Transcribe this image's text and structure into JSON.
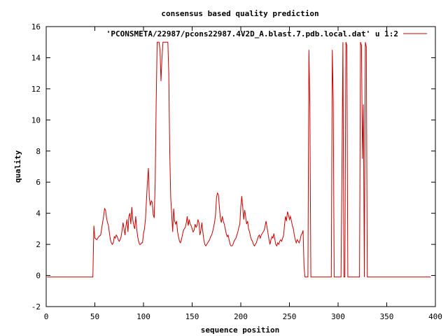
{
  "chart_data": {
    "type": "line",
    "title": "consensus based quality prediction",
    "xlabel": "sequence position",
    "ylabel": "quality",
    "xlim": [
      0,
      400
    ],
    "ylim": [
      -2,
      16
    ],
    "x_ticks": [
      0,
      50,
      100,
      150,
      200,
      250,
      300,
      350,
      400
    ],
    "y_ticks": [
      -2,
      0,
      2,
      4,
      6,
      8,
      10,
      12,
      14,
      16
    ],
    "grid": false,
    "legend_position": "top-right",
    "colors": {
      "series": "#cc0000",
      "axes": "#000000",
      "background": "#ffffff"
    },
    "series": [
      {
        "name": "'PCONSMETA/22987/pcons22987.4V2D_A.blast.7.pdb.local.dat' u 1:2",
        "color": "#cc0000",
        "points": [
          [
            1,
            -0.1
          ],
          [
            48,
            -0.1
          ],
          [
            49,
            3.2
          ],
          [
            50,
            2.4
          ],
          [
            52,
            2.3
          ],
          [
            54,
            2.5
          ],
          [
            56,
            2.6
          ],
          [
            58,
            3.4
          ],
          [
            59,
            3.8
          ],
          [
            60,
            4.3
          ],
          [
            61,
            4.2
          ],
          [
            62,
            3.7
          ],
          [
            63,
            3.4
          ],
          [
            64,
            3.2
          ],
          [
            65,
            2.7
          ],
          [
            66,
            2.3
          ],
          [
            67,
            2.1
          ],
          [
            68,
            2.0
          ],
          [
            69,
            2.1
          ],
          [
            70,
            2.5
          ],
          [
            71,
            2.4
          ],
          [
            72,
            2.6
          ],
          [
            73,
            2.5
          ],
          [
            74,
            2.3
          ],
          [
            75,
            2.2
          ],
          [
            76,
            2.3
          ],
          [
            77,
            2.5
          ],
          [
            78,
            2.9
          ],
          [
            79,
            3.4
          ],
          [
            80,
            3.0
          ],
          [
            81,
            2.6
          ],
          [
            82,
            3.2
          ],
          [
            83,
            3.6
          ],
          [
            84,
            2.8
          ],
          [
            85,
            3.8
          ],
          [
            86,
            4.0
          ],
          [
            87,
            3.3
          ],
          [
            88,
            4.4
          ],
          [
            89,
            3.6
          ],
          [
            90,
            3.2
          ],
          [
            91,
            3.0
          ],
          [
            92,
            3.8
          ],
          [
            93,
            3.0
          ],
          [
            94,
            2.5
          ],
          [
            95,
            2.2
          ],
          [
            96,
            2.0
          ],
          [
            97,
            2.0
          ],
          [
            98,
            2.1
          ],
          [
            99,
            2.1
          ],
          [
            100,
            2.7
          ],
          [
            101,
            3.0
          ],
          [
            102,
            3.6
          ],
          [
            103,
            4.8
          ],
          [
            104,
            6.0
          ],
          [
            105,
            6.9
          ],
          [
            106,
            5.0
          ],
          [
            107,
            4.5
          ],
          [
            108,
            4.8
          ],
          [
            109,
            4.7
          ],
          [
            110,
            3.9
          ],
          [
            111,
            3.7
          ],
          [
            112,
            6.0
          ],
          [
            113,
            11.0
          ],
          [
            114,
            15.0
          ],
          [
            116,
            15.0
          ],
          [
            117,
            14.5
          ],
          [
            118,
            12.5
          ],
          [
            119,
            14.0
          ],
          [
            120,
            15.0
          ],
          [
            125,
            15.0
          ],
          [
            126,
            13.0
          ],
          [
            127,
            8.0
          ],
          [
            128,
            5.0
          ],
          [
            129,
            3.9
          ],
          [
            130,
            2.8
          ],
          [
            131,
            4.3
          ],
          [
            132,
            3.5
          ],
          [
            133,
            3.3
          ],
          [
            134,
            3.5
          ],
          [
            135,
            2.8
          ],
          [
            136,
            2.5
          ],
          [
            137,
            2.2
          ],
          [
            138,
            2.1
          ],
          [
            139,
            2.3
          ],
          [
            140,
            2.6
          ],
          [
            141,
            2.9
          ],
          [
            142,
            3.0
          ],
          [
            143,
            3.1
          ],
          [
            144,
            3.4
          ],
          [
            145,
            3.8
          ],
          [
            146,
            3.2
          ],
          [
            147,
            3.6
          ],
          [
            148,
            3.3
          ],
          [
            149,
            3.2
          ],
          [
            150,
            3.0
          ],
          [
            151,
            2.8
          ],
          [
            152,
            2.9
          ],
          [
            153,
            3.3
          ],
          [
            154,
            3.1
          ],
          [
            155,
            3.2
          ],
          [
            156,
            3.6
          ],
          [
            157,
            3.4
          ],
          [
            158,
            2.6
          ],
          [
            159,
            2.9
          ],
          [
            160,
            3.4
          ],
          [
            161,
            2.8
          ],
          [
            162,
            2.3
          ],
          [
            163,
            2.0
          ],
          [
            164,
            1.9
          ],
          [
            165,
            2.0
          ],
          [
            166,
            2.1
          ],
          [
            167,
            2.2
          ],
          [
            168,
            2.3
          ],
          [
            169,
            2.5
          ],
          [
            170,
            2.6
          ],
          [
            171,
            2.8
          ],
          [
            172,
            3.1
          ],
          [
            173,
            3.4
          ],
          [
            174,
            3.9
          ],
          [
            175,
            5.0
          ],
          [
            176,
            5.3
          ],
          [
            177,
            5.2
          ],
          [
            178,
            4.4
          ],
          [
            179,
            3.7
          ],
          [
            180,
            3.4
          ],
          [
            181,
            3.8
          ],
          [
            182,
            3.5
          ],
          [
            183,
            3.3
          ],
          [
            184,
            3.0
          ],
          [
            185,
            2.7
          ],
          [
            186,
            2.5
          ],
          [
            187,
            2.6
          ],
          [
            188,
            2.3
          ],
          [
            189,
            2.0
          ],
          [
            190,
            1.9
          ],
          [
            191,
            1.9
          ],
          [
            192,
            2.0
          ],
          [
            193,
            2.2
          ],
          [
            194,
            2.3
          ],
          [
            195,
            2.4
          ],
          [
            196,
            2.6
          ],
          [
            197,
            2.8
          ],
          [
            198,
            3.1
          ],
          [
            199,
            3.3
          ],
          [
            200,
            4.4
          ],
          [
            201,
            5.1
          ],
          [
            202,
            4.4
          ],
          [
            203,
            3.6
          ],
          [
            204,
            4.2
          ],
          [
            205,
            3.8
          ],
          [
            206,
            3.3
          ],
          [
            207,
            3.5
          ],
          [
            208,
            3.0
          ],
          [
            209,
            2.8
          ],
          [
            210,
            2.5
          ],
          [
            211,
            2.3
          ],
          [
            212,
            2.2
          ],
          [
            213,
            2.0
          ],
          [
            214,
            1.9
          ],
          [
            215,
            2.0
          ],
          [
            216,
            2.1
          ],
          [
            217,
            2.3
          ],
          [
            218,
            2.5
          ],
          [
            219,
            2.6
          ],
          [
            220,
            2.4
          ],
          [
            221,
            2.6
          ],
          [
            222,
            2.7
          ],
          [
            223,
            2.8
          ],
          [
            224,
            2.9
          ],
          [
            225,
            3.2
          ],
          [
            226,
            3.5
          ],
          [
            227,
            3.1
          ],
          [
            228,
            2.7
          ],
          [
            229,
            2.3
          ],
          [
            230,
            2.0
          ],
          [
            231,
            2.3
          ],
          [
            232,
            2.5
          ],
          [
            233,
            2.4
          ],
          [
            234,
            2.7
          ],
          [
            235,
            2.3
          ],
          [
            236,
            2.0
          ],
          [
            237,
            1.9
          ],
          [
            238,
            2.1
          ],
          [
            239,
            2.0
          ],
          [
            240,
            2.2
          ],
          [
            241,
            2.3
          ],
          [
            242,
            2.2
          ],
          [
            243,
            2.4
          ],
          [
            244,
            2.6
          ],
          [
            245,
            3.3
          ],
          [
            246,
            3.8
          ],
          [
            247,
            3.5
          ],
          [
            248,
            4.1
          ],
          [
            249,
            3.9
          ],
          [
            250,
            3.6
          ],
          [
            251,
            3.8
          ],
          [
            252,
            3.5
          ],
          [
            253,
            3.2
          ],
          [
            254,
            3.0
          ],
          [
            255,
            2.6
          ],
          [
            256,
            2.3
          ],
          [
            257,
            2.1
          ],
          [
            258,
            2.3
          ],
          [
            259,
            2.2
          ],
          [
            260,
            2.1
          ],
          [
            261,
            2.3
          ],
          [
            262,
            2.6
          ],
          [
            263,
            2.7
          ],
          [
            264,
            2.9
          ],
          [
            265,
            0.6
          ],
          [
            266,
            -0.1
          ],
          [
            269,
            -0.1
          ],
          [
            270,
            14.5
          ],
          [
            271,
            10.8
          ],
          [
            272,
            -0.1
          ],
          [
            293,
            -0.1
          ],
          [
            294,
            14.5
          ],
          [
            295,
            11.3
          ],
          [
            296,
            -0.1
          ],
          [
            303,
            -0.1
          ],
          [
            304,
            7.5
          ],
          [
            305,
            15.0
          ],
          [
            306,
            -0.1
          ],
          [
            307,
            -0.1
          ],
          [
            308,
            15.0
          ],
          [
            309,
            14.8
          ],
          [
            310,
            -0.1
          ],
          [
            322,
            -0.1
          ],
          [
            323,
            15.0
          ],
          [
            324,
            14.8
          ],
          [
            325,
            7.5
          ],
          [
            326,
            11.0
          ],
          [
            327,
            -0.1
          ],
          [
            328,
            15.0
          ],
          [
            329,
            14.7
          ],
          [
            330,
            -0.1
          ],
          [
            395,
            -0.1
          ]
        ]
      }
    ]
  }
}
